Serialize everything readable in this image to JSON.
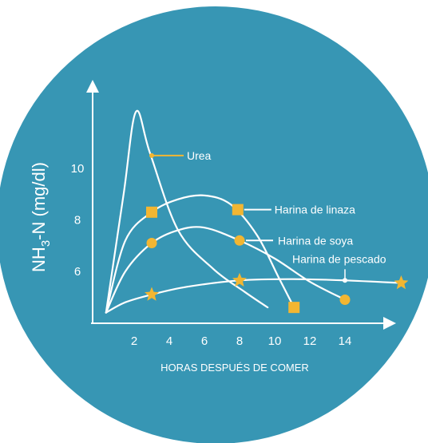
{
  "colors": {
    "background_circle": "#3796b4",
    "lines": "#ffffff",
    "markers": "#f2b632",
    "text": "#ffffff"
  },
  "chart_data": {
    "type": "line",
    "title": "",
    "xlabel": "HORAS DESPUÉS DE COMER",
    "ylabel_parts": {
      "main": "NH",
      "sub": "3",
      "rest": "-N (mg/dl)"
    },
    "xlim": [
      0,
      17.8
    ],
    "ylim": [
      4.4,
      12.2
    ],
    "x_ticks": [
      2,
      4,
      6,
      8,
      10,
      12,
      14
    ],
    "y_ticks": [
      6,
      8,
      10
    ],
    "grid": false,
    "legend": "inline labels",
    "series": [
      {
        "name": "Urea",
        "marker": "none",
        "points": [
          [
            0.4,
            4.4
          ],
          [
            1.4,
            9.0
          ],
          [
            2.1,
            12.2
          ],
          [
            2.9,
            10.6
          ],
          [
            4.5,
            7.6
          ],
          [
            6.5,
            6.1
          ],
          [
            8.3,
            5.2
          ],
          [
            9.6,
            4.6
          ]
        ],
        "markers_at": [],
        "label_point": [
          3.0,
          10.5
        ]
      },
      {
        "name": "Harina de linaza",
        "marker": "square",
        "points": [
          [
            0.4,
            4.4
          ],
          [
            1.5,
            7.2
          ],
          [
            3.0,
            8.3
          ],
          [
            4.5,
            8.8
          ],
          [
            6.0,
            8.95
          ],
          [
            7.5,
            8.6
          ],
          [
            9.0,
            7.4
          ],
          [
            10.2,
            5.8
          ],
          [
            11.1,
            4.6
          ]
        ],
        "markers_at": [
          [
            3.0,
            8.3
          ],
          [
            7.9,
            8.4
          ],
          [
            11.1,
            4.6
          ]
        ],
        "label_point": [
          7.9,
          8.4
        ]
      },
      {
        "name": "Harina de soya",
        "marker": "circle",
        "points": [
          [
            0.4,
            4.4
          ],
          [
            1.5,
            6.0
          ],
          [
            3.0,
            7.1
          ],
          [
            4.5,
            7.6
          ],
          [
            6.0,
            7.7
          ],
          [
            8.0,
            7.2
          ],
          [
            10.0,
            6.5
          ],
          [
            12.0,
            5.6
          ],
          [
            14.0,
            4.9
          ]
        ],
        "markers_at": [
          [
            3.0,
            7.1
          ],
          [
            8.0,
            7.2
          ],
          [
            14.0,
            4.9
          ]
        ],
        "label_point": [
          8.0,
          7.2
        ]
      },
      {
        "name": "Harina de pescado",
        "marker": "star",
        "points": [
          [
            0.4,
            4.4
          ],
          [
            1.5,
            4.8
          ],
          [
            3.0,
            5.1
          ],
          [
            5.0,
            5.4
          ],
          [
            8.0,
            5.65
          ],
          [
            11.0,
            5.7
          ],
          [
            14.0,
            5.65
          ],
          [
            17.2,
            5.55
          ]
        ],
        "markers_at": [
          [
            3.0,
            5.1
          ],
          [
            8.0,
            5.65
          ],
          [
            17.2,
            5.55
          ]
        ],
        "label_point": [
          14.0,
          5.65
        ]
      }
    ]
  }
}
